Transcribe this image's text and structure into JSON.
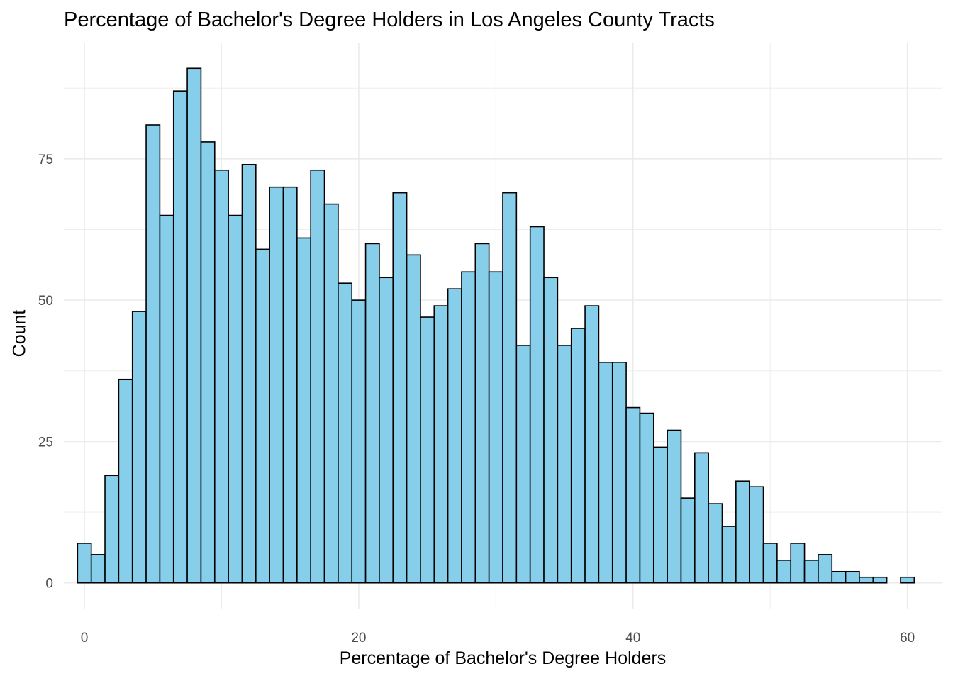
{
  "chart_data": {
    "type": "bar",
    "subtype": "histogram",
    "title": "Percentage of Bachelor's Degree Holders in Los Angeles County Tracts",
    "xlabel": "Percentage of Bachelor's Degree Holders",
    "ylabel": "Count",
    "bin_width": 1,
    "x": [
      0,
      1,
      2,
      3,
      4,
      5,
      6,
      7,
      8,
      9,
      10,
      11,
      12,
      13,
      14,
      15,
      16,
      17,
      18,
      19,
      20,
      21,
      22,
      23,
      24,
      25,
      26,
      27,
      28,
      29,
      30,
      31,
      32,
      33,
      34,
      35,
      36,
      37,
      38,
      39,
      40,
      41,
      42,
      43,
      44,
      45,
      46,
      47,
      48,
      49,
      50,
      51,
      52,
      53,
      54,
      55,
      56,
      57,
      58,
      59,
      60
    ],
    "values": [
      7,
      5,
      19,
      36,
      48,
      81,
      65,
      87,
      91,
      78,
      73,
      65,
      74,
      59,
      70,
      70,
      61,
      73,
      67,
      53,
      50,
      60,
      54,
      69,
      58,
      47,
      49,
      52,
      55,
      60,
      55,
      69,
      42,
      63,
      54,
      42,
      45,
      49,
      39,
      39,
      31,
      30,
      24,
      27,
      15,
      23,
      14,
      10,
      18,
      17,
      7,
      4,
      7,
      4,
      5,
      2,
      2,
      1,
      1,
      0,
      1
    ],
    "xlim": [
      -1.5,
      62.5
    ],
    "ylim": [
      -4.55,
      95.55
    ],
    "x_ticks": [
      0,
      20,
      40,
      60
    ],
    "y_ticks": [
      0,
      25,
      50,
      75
    ],
    "grid": true,
    "bar_fill": "#87CEEB",
    "bar_stroke": "#000000",
    "grid_color": "#ebebeb",
    "legend": "none"
  }
}
